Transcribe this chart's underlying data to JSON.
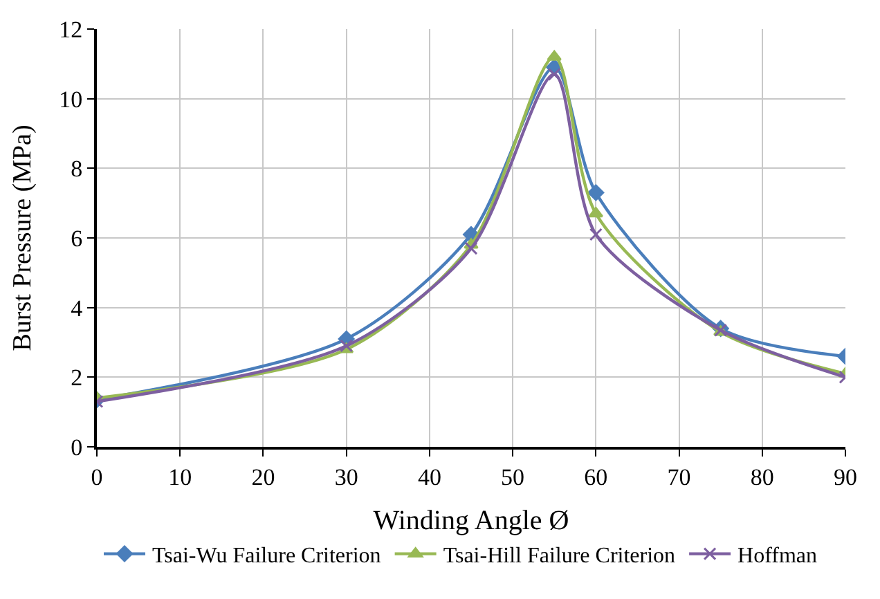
{
  "chart_data": {
    "type": "line",
    "xlabel": "Winding Angle Ø",
    "ylabel": "Burst Pressure (MPa)",
    "x": [
      0,
      30,
      45,
      55,
      60,
      75,
      90
    ],
    "series": [
      {
        "name": "Tsai-Wu Failure Criterion",
        "color": "#4a7ebb",
        "marker": "diamond",
        "values": [
          1.35,
          3.1,
          6.1,
          10.9,
          7.3,
          3.4,
          2.6
        ]
      },
      {
        "name": "Tsai-Hill Failure Criterion",
        "color": "#98b954",
        "marker": "triangle",
        "values": [
          1.4,
          2.8,
          5.8,
          11.2,
          6.7,
          3.3,
          2.1
        ]
      },
      {
        "name": "Hoffman",
        "color": "#7d5fa0",
        "marker": "cross",
        "values": [
          1.3,
          2.9,
          5.7,
          10.7,
          6.1,
          3.35,
          2.0
        ]
      }
    ],
    "xlim": [
      0,
      90
    ],
    "xticks": [
      0,
      10,
      20,
      30,
      40,
      50,
      60,
      70,
      80,
      90
    ],
    "ylim": [
      0,
      12
    ],
    "yticks": [
      0,
      2,
      4,
      6,
      8,
      10,
      12
    ],
    "grid": true,
    "legend": "bottom",
    "line_style": "solid"
  }
}
